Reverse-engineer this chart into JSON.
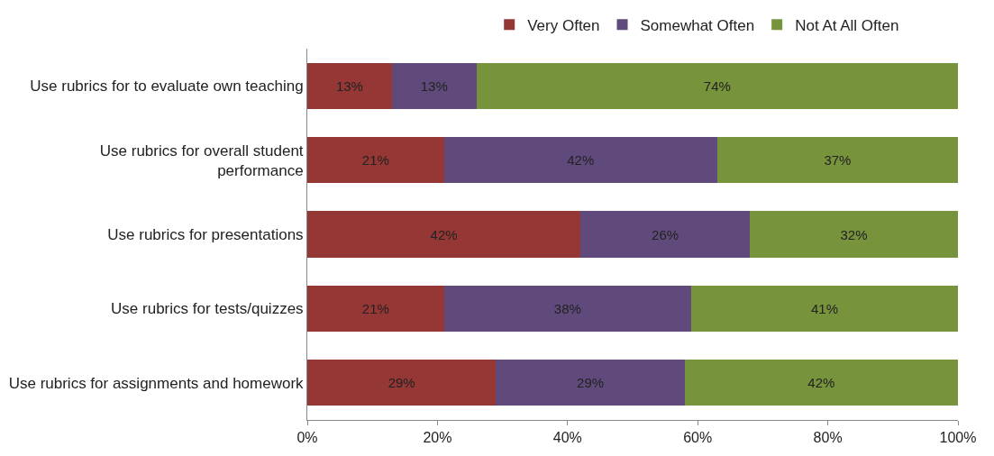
{
  "chart_data": {
    "type": "bar",
    "orientation": "horizontal",
    "stacked": true,
    "categories": [
      "Use rubrics for to evaluate own teaching",
      "Use rubrics for overall student performance",
      "Use rubrics for presentations",
      "Use rubrics for tests/quizzes",
      "Use rubrics for assignments and homework"
    ],
    "series": [
      {
        "name": "Very Often",
        "color": "#953735",
        "values": [
          13,
          21,
          42,
          21,
          29
        ],
        "value_labels": [
          "13%",
          "21%",
          "42%",
          "21%",
          "29%"
        ]
      },
      {
        "name": "Somewhat Often",
        "color": "#604a7b",
        "values": [
          13,
          42,
          26,
          38,
          29
        ],
        "value_labels": [
          "13%",
          "42%",
          "26%",
          "38%",
          "29%"
        ]
      },
      {
        "name": "Not At All Often",
        "color": "#77933c",
        "values": [
          74,
          37,
          32,
          41,
          42
        ],
        "value_labels": [
          "74%",
          "37%",
          "32%",
          "41%",
          "42%"
        ]
      }
    ],
    "xlim": [
      0,
      100
    ],
    "xticks": [
      {
        "value": 0,
        "label": "0%"
      },
      {
        "value": 20,
        "label": "20%"
      },
      {
        "value": 40,
        "label": "40%"
      },
      {
        "value": 60,
        "label": "60%"
      },
      {
        "value": 80,
        "label": "80%"
      },
      {
        "value": 100,
        "label": "100%"
      }
    ],
    "legend": "top"
  }
}
